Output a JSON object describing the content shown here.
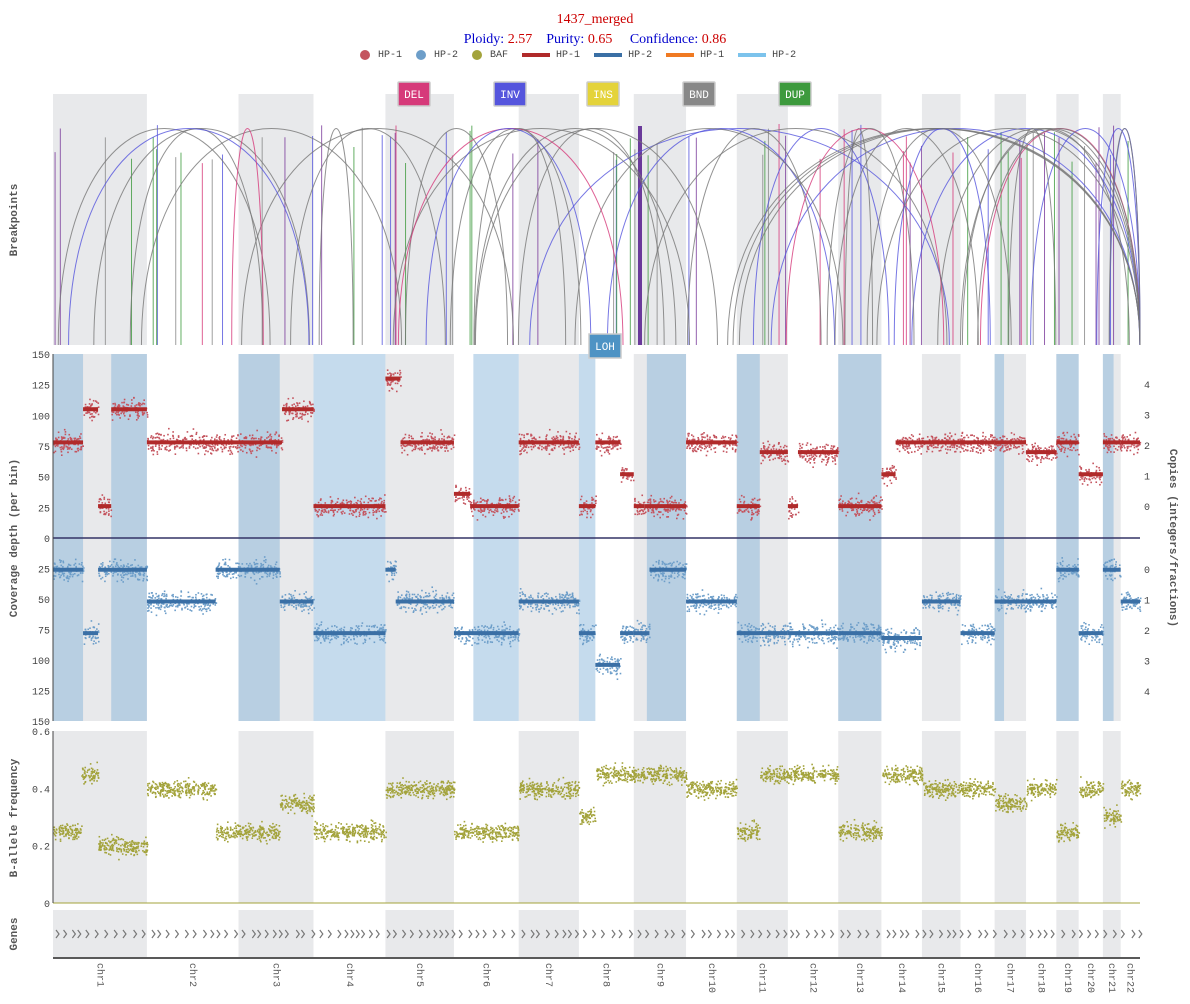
{
  "header": {
    "title": "1437_merged",
    "ploidy_label": "Ploidy:",
    "ploidy_value": "2.57",
    "purity_label": "Purity:",
    "purity_value": "0.65",
    "confidence_label": "Confidence:",
    "confidence_value": "0.86"
  },
  "legend": [
    {
      "kind": "dot",
      "label": "HP-1",
      "color": "#c4545e"
    },
    {
      "kind": "dot",
      "label": "HP-2",
      "color": "#6d9ec9"
    },
    {
      "kind": "dot",
      "label": "BAF",
      "color": "#a3a33b"
    },
    {
      "kind": "line",
      "label": "HP-1",
      "color": "#b02a2a"
    },
    {
      "kind": "line",
      "label": "HP-2",
      "color": "#3a6fa5"
    },
    {
      "kind": "line",
      "label": "HP-1",
      "color": "#f07a22"
    },
    {
      "kind": "line",
      "label": "HP-2",
      "color": "#7cc3ec"
    }
  ],
  "sv_buttons": [
    {
      "label": "DEL",
      "color": "#d63a7a",
      "text_color": "#ffffff"
    },
    {
      "label": "INV",
      "color": "#5555dd",
      "text_color": "#ffffff"
    },
    {
      "label": "INS",
      "color": "#e4d33a",
      "text_color": "#ffffff"
    },
    {
      "label": "BND",
      "color": "#888888",
      "text_color": "#ffffff"
    },
    {
      "label": "DUP",
      "color": "#3d9a3d",
      "text_color": "#ffffff"
    }
  ],
  "loh_button": {
    "label": "LOH",
    "color": "#4e93c4"
  },
  "axis_titles": {
    "breakpoints": "Breakpoints",
    "coverage": "Coverage depth (per bin)",
    "copies": "Copies (integers/fractions)",
    "baf": "B-allele frequency",
    "genes": "Genes"
  },
  "chart_data": {
    "type": "scatter",
    "chromosomes": [
      {
        "name": "chr1",
        "size": 248
      },
      {
        "name": "chr2",
        "size": 242
      },
      {
        "name": "chr3",
        "size": 198
      },
      {
        "name": "chr4",
        "size": 190
      },
      {
        "name": "chr5",
        "size": 181
      },
      {
        "name": "chr6",
        "size": 171
      },
      {
        "name": "chr7",
        "size": 159
      },
      {
        "name": "chr8",
        "size": 145
      },
      {
        "name": "chr9",
        "size": 138
      },
      {
        "name": "chr10",
        "size": 134
      },
      {
        "name": "chr11",
        "size": 135
      },
      {
        "name": "chr12",
        "size": 133
      },
      {
        "name": "chr13",
        "size": 114
      },
      {
        "name": "chr14",
        "size": 107
      },
      {
        "name": "chr15",
        "size": 102
      },
      {
        "name": "chr16",
        "size": 90
      },
      {
        "name": "chr17",
        "size": 83
      },
      {
        "name": "chr18",
        "size": 80
      },
      {
        "name": "chr19",
        "size": 59
      },
      {
        "name": "chr20",
        "size": 64
      },
      {
        "name": "chr21",
        "size": 47
      },
      {
        "name": "chr22",
        "size": 51
      }
    ],
    "coverage_axis": {
      "hp1_ticks": [
        "150",
        "125",
        "100",
        "75",
        "50",
        "25",
        "0"
      ],
      "hp2_ticks": [
        "25",
        "50",
        "75",
        "100",
        "125",
        "150"
      ],
      "range": [
        0,
        150
      ]
    },
    "copies_axis": {
      "hp1_ticks": [
        "4",
        "3",
        "2",
        "1",
        "0"
      ],
      "hp2_ticks": [
        "0",
        "1",
        "2",
        "3",
        "4"
      ]
    },
    "baf_axis": {
      "ticks": [
        "0.6",
        "0.4",
        "0.2",
        "0"
      ],
      "range": [
        0,
        0.6
      ]
    },
    "hp1_segments": [
      {
        "chr": 1,
        "from": 0.0,
        "to": 0.32,
        "depth": 78
      },
      {
        "chr": 1,
        "from": 0.32,
        "to": 0.48,
        "depth": 105
      },
      {
        "chr": 1,
        "from": 0.48,
        "to": 0.62,
        "depth": 26
      },
      {
        "chr": 1,
        "from": 0.62,
        "to": 1.0,
        "depth": 105
      },
      {
        "chr": 2,
        "from": 0.0,
        "to": 1.0,
        "depth": 78
      },
      {
        "chr": 3,
        "from": 0.0,
        "to": 0.58,
        "depth": 78
      },
      {
        "chr": 3,
        "from": 0.58,
        "to": 1.0,
        "depth": 105
      },
      {
        "chr": 4,
        "from": 0.0,
        "to": 1.0,
        "depth": 26
      },
      {
        "chr": 5,
        "from": 0.0,
        "to": 0.22,
        "depth": 130
      },
      {
        "chr": 5,
        "from": 0.22,
        "to": 1.0,
        "depth": 78
      },
      {
        "chr": 6,
        "from": 0.0,
        "to": 0.25,
        "depth": 36
      },
      {
        "chr": 6,
        "from": 0.25,
        "to": 1.0,
        "depth": 26
      },
      {
        "chr": 7,
        "from": 0.0,
        "to": 1.0,
        "depth": 78
      },
      {
        "chr": 8,
        "from": 0.0,
        "to": 0.3,
        "depth": 26
      },
      {
        "chr": 8,
        "from": 0.3,
        "to": 0.75,
        "depth": 78
      },
      {
        "chr": 8,
        "from": 0.75,
        "to": 1.0,
        "depth": 52
      },
      {
        "chr": 9,
        "from": 0.0,
        "to": 0.2,
        "depth": 26
      },
      {
        "chr": 9,
        "from": 0.2,
        "to": 1.0,
        "depth": 26
      },
      {
        "chr": 10,
        "from": 0.0,
        "to": 1.0,
        "depth": 78
      },
      {
        "chr": 11,
        "from": 0.0,
        "to": 0.45,
        "depth": 26
      },
      {
        "chr": 11,
        "from": 0.45,
        "to": 1.0,
        "depth": 70
      },
      {
        "chr": 12,
        "from": 0.0,
        "to": 0.2,
        "depth": 26
      },
      {
        "chr": 12,
        "from": 0.2,
        "to": 1.0,
        "depth": 70
      },
      {
        "chr": 13,
        "from": 0.0,
        "to": 1.0,
        "depth": 26
      },
      {
        "chr": 14,
        "from": 0.0,
        "to": 0.35,
        "depth": 52
      },
      {
        "chr": 14,
        "from": 0.35,
        "to": 1.0,
        "depth": 78
      },
      {
        "chr": 15,
        "from": 0.0,
        "to": 1.0,
        "depth": 78
      },
      {
        "chr": 16,
        "from": 0.0,
        "to": 1.0,
        "depth": 78
      },
      {
        "chr": 17,
        "from": 0.0,
        "to": 1.0,
        "depth": 78
      },
      {
        "chr": 18,
        "from": 0.0,
        "to": 1.0,
        "depth": 70
      },
      {
        "chr": 19,
        "from": 0.0,
        "to": 1.0,
        "depth": 78
      },
      {
        "chr": 20,
        "from": 0.0,
        "to": 1.0,
        "depth": 52
      },
      {
        "chr": 21,
        "from": 0.0,
        "to": 1.0,
        "depth": 78
      },
      {
        "chr": 22,
        "from": 0.0,
        "to": 1.0,
        "depth": 78
      }
    ],
    "hp2_segments": [
      {
        "chr": 1,
        "from": 0.0,
        "to": 0.32,
        "depth": 26
      },
      {
        "chr": 1,
        "from": 0.32,
        "to": 0.48,
        "depth": 78
      },
      {
        "chr": 1,
        "from": 0.48,
        "to": 1.0,
        "depth": 26
      },
      {
        "chr": 2,
        "from": 0.0,
        "to": 0.75,
        "depth": 52
      },
      {
        "chr": 2,
        "from": 0.75,
        "to": 1.0,
        "depth": 26
      },
      {
        "chr": 3,
        "from": 0.0,
        "to": 0.55,
        "depth": 26
      },
      {
        "chr": 3,
        "from": 0.55,
        "to": 1.0,
        "depth": 52
      },
      {
        "chr": 4,
        "from": 0.0,
        "to": 1.0,
        "depth": 78
      },
      {
        "chr": 5,
        "from": 0.0,
        "to": 0.15,
        "depth": 26
      },
      {
        "chr": 5,
        "from": 0.15,
        "to": 1.0,
        "depth": 52
      },
      {
        "chr": 6,
        "from": 0.0,
        "to": 1.0,
        "depth": 78
      },
      {
        "chr": 7,
        "from": 0.0,
        "to": 1.0,
        "depth": 52
      },
      {
        "chr": 8,
        "from": 0.0,
        "to": 0.3,
        "depth": 78
      },
      {
        "chr": 8,
        "from": 0.3,
        "to": 0.75,
        "depth": 104
      },
      {
        "chr": 8,
        "from": 0.75,
        "to": 1.0,
        "depth": 78
      },
      {
        "chr": 9,
        "from": 0.0,
        "to": 0.3,
        "depth": 78
      },
      {
        "chr": 9,
        "from": 0.3,
        "to": 1.0,
        "depth": 26
      },
      {
        "chr": 10,
        "from": 0.0,
        "to": 1.0,
        "depth": 52
      },
      {
        "chr": 11,
        "from": 0.0,
        "to": 1.0,
        "depth": 78
      },
      {
        "chr": 12,
        "from": 0.0,
        "to": 1.0,
        "depth": 78
      },
      {
        "chr": 13,
        "from": 0.0,
        "to": 1.0,
        "depth": 78
      },
      {
        "chr": 14,
        "from": 0.0,
        "to": 1.0,
        "depth": 82
      },
      {
        "chr": 15,
        "from": 0.0,
        "to": 1.0,
        "depth": 52
      },
      {
        "chr": 16,
        "from": 0.0,
        "to": 1.0,
        "depth": 78
      },
      {
        "chr": 17,
        "from": 0.0,
        "to": 1.0,
        "depth": 52
      },
      {
        "chr": 18,
        "from": 0.0,
        "to": 1.0,
        "depth": 52
      },
      {
        "chr": 19,
        "from": 0.0,
        "to": 1.0,
        "depth": 26
      },
      {
        "chr": 20,
        "from": 0.0,
        "to": 1.0,
        "depth": 78
      },
      {
        "chr": 21,
        "from": 0.0,
        "to": 1.0,
        "depth": 26
      },
      {
        "chr": 22,
        "from": 0.0,
        "to": 1.0,
        "depth": 52
      }
    ],
    "baf_levels": [
      {
        "chr": 1,
        "from": 0.0,
        "to": 0.3,
        "baf": 0.25
      },
      {
        "chr": 1,
        "from": 0.3,
        "to": 0.48,
        "baf": 0.45
      },
      {
        "chr": 1,
        "from": 0.48,
        "to": 1.0,
        "baf": 0.2
      },
      {
        "chr": 2,
        "from": 0.0,
        "to": 0.75,
        "baf": 0.4
      },
      {
        "chr": 2,
        "from": 0.75,
        "to": 1.0,
        "baf": 0.25
      },
      {
        "chr": 3,
        "from": 0.0,
        "to": 0.55,
        "baf": 0.25
      },
      {
        "chr": 3,
        "from": 0.55,
        "to": 1.0,
        "baf": 0.35
      },
      {
        "chr": 4,
        "from": 0.0,
        "to": 1.0,
        "baf": 0.25
      },
      {
        "chr": 5,
        "from": 0.0,
        "to": 1.0,
        "baf": 0.4
      },
      {
        "chr": 6,
        "from": 0.0,
        "to": 1.0,
        "baf": 0.25
      },
      {
        "chr": 7,
        "from": 0.0,
        "to": 1.0,
        "baf": 0.4
      },
      {
        "chr": 8,
        "from": 0.0,
        "to": 0.3,
        "baf": 0.3
      },
      {
        "chr": 8,
        "from": 0.3,
        "to": 1.0,
        "baf": 0.45
      },
      {
        "chr": 9,
        "from": 0.0,
        "to": 1.0,
        "baf": 0.45
      },
      {
        "chr": 10,
        "from": 0.0,
        "to": 1.0,
        "baf": 0.4
      },
      {
        "chr": 11,
        "from": 0.0,
        "to": 0.45,
        "baf": 0.25
      },
      {
        "chr": 11,
        "from": 0.45,
        "to": 1.0,
        "baf": 0.45
      },
      {
        "chr": 12,
        "from": 0.0,
        "to": 1.0,
        "baf": 0.45
      },
      {
        "chr": 13,
        "from": 0.0,
        "to": 1.0,
        "baf": 0.25
      },
      {
        "chr": 14,
        "from": 0.0,
        "to": 1.0,
        "baf": 0.45
      },
      {
        "chr": 15,
        "from": 0.0,
        "to": 1.0,
        "baf": 0.4
      },
      {
        "chr": 16,
        "from": 0.0,
        "to": 1.0,
        "baf": 0.4
      },
      {
        "chr": 17,
        "from": 0.0,
        "to": 1.0,
        "baf": 0.35
      },
      {
        "chr": 18,
        "from": 0.0,
        "to": 1.0,
        "baf": 0.4
      },
      {
        "chr": 19,
        "from": 0.0,
        "to": 1.0,
        "baf": 0.25
      },
      {
        "chr": 20,
        "from": 0.0,
        "to": 1.0,
        "baf": 0.4
      },
      {
        "chr": 21,
        "from": 0.0,
        "to": 1.0,
        "baf": 0.3
      },
      {
        "chr": 22,
        "from": 0.0,
        "to": 1.0,
        "baf": 0.4
      }
    ],
    "loh_regions": [
      {
        "chr": 1,
        "from": 0.0,
        "to": 0.32
      },
      {
        "chr": 1,
        "from": 0.62,
        "to": 1.0
      },
      {
        "chr": 3,
        "from": 0.0,
        "to": 0.55
      },
      {
        "chr": 4,
        "from": 0.0,
        "to": 1.0
      },
      {
        "chr": 6,
        "from": 0.3,
        "to": 1.0
      },
      {
        "chr": 8,
        "from": 0.0,
        "to": 0.3
      },
      {
        "chr": 9,
        "from": 0.25,
        "to": 1.0
      },
      {
        "chr": 11,
        "from": 0.0,
        "to": 0.45
      },
      {
        "chr": 13,
        "from": 0.0,
        "to": 1.0
      },
      {
        "chr": 17,
        "from": 0.0,
        "to": 0.3
      },
      {
        "chr": 19,
        "from": 0.0,
        "to": 1.0
      },
      {
        "chr": 21,
        "from": 0.0,
        "to": 0.6
      }
    ]
  }
}
